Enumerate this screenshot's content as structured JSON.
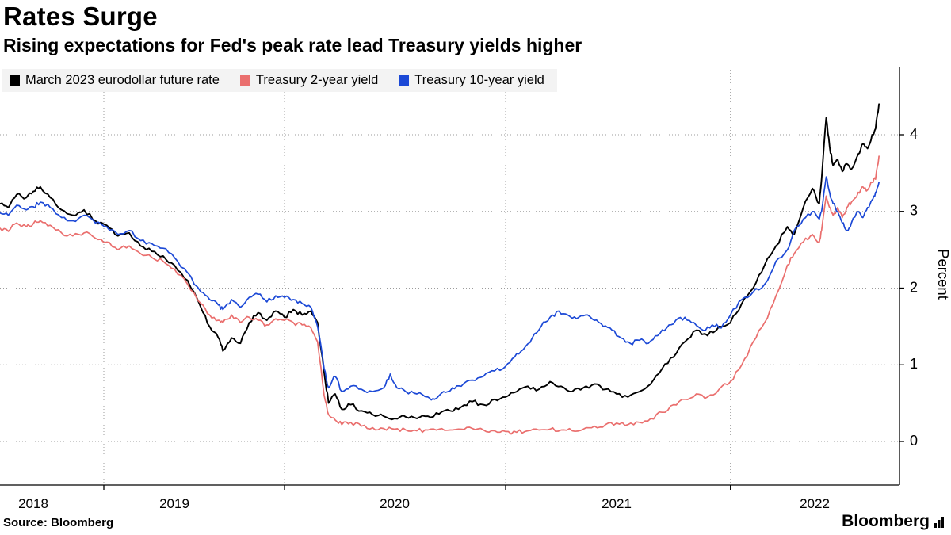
{
  "header": {
    "title": "Rates Surge",
    "subtitle": "Rising expectations for Fed's peak rate lead Treasury yields higher"
  },
  "footer": {
    "source": "Source:  Bloomberg",
    "brand": "Bloomberg"
  },
  "chart_data": {
    "type": "line",
    "title": "Rates Surge",
    "subtitle": "Rising expectations for Fed's peak rate lead Treasury yields higher",
    "ylabel": "Percent",
    "ylabel_side": "right",
    "x_tick_labels": [
      "2018",
      "2019",
      "2020",
      "2021",
      "2022"
    ],
    "y_ticks": [
      0,
      1,
      2,
      3,
      4
    ],
    "xlim": [
      2018.26,
      2022.66
    ],
    "ylim": [
      -0.55,
      4.9
    ],
    "grid": "dotted",
    "legend_position": "top-left",
    "series": [
      {
        "name": "March 2023 eurodollar future rate",
        "color": "#000000",
        "points": [
          [
            2018.26,
            3.1
          ],
          [
            2018.32,
            3.05
          ],
          [
            2018.38,
            3.22
          ],
          [
            2018.45,
            3.18
          ],
          [
            2018.5,
            3.26
          ],
          [
            2018.55,
            3.32
          ],
          [
            2018.62,
            3.18
          ],
          [
            2018.7,
            3.02
          ],
          [
            2018.78,
            2.95
          ],
          [
            2018.86,
            3.02
          ],
          [
            2018.94,
            2.88
          ],
          [
            2019.02,
            2.82
          ],
          [
            2019.1,
            2.68
          ],
          [
            2019.18,
            2.72
          ],
          [
            2019.26,
            2.55
          ],
          [
            2019.34,
            2.48
          ],
          [
            2019.42,
            2.42
          ],
          [
            2019.5,
            2.3
          ],
          [
            2019.56,
            2.1
          ],
          [
            2019.62,
            1.75
          ],
          [
            2019.66,
            1.5
          ],
          [
            2019.7,
            1.35
          ],
          [
            2019.72,
            1.18
          ],
          [
            2019.76,
            1.35
          ],
          [
            2019.8,
            1.28
          ],
          [
            2019.84,
            1.55
          ],
          [
            2019.88,
            1.68
          ],
          [
            2019.92,
            1.58
          ],
          [
            2019.96,
            1.7
          ],
          [
            2020.0,
            1.62
          ],
          [
            2020.04,
            1.72
          ],
          [
            2020.08,
            1.65
          ],
          [
            2020.12,
            1.7
          ],
          [
            2020.15,
            1.55
          ],
          [
            2020.18,
            0.9
          ],
          [
            2020.2,
            0.5
          ],
          [
            2020.23,
            0.62
          ],
          [
            2020.26,
            0.42
          ],
          [
            2020.3,
            0.48
          ],
          [
            2020.35,
            0.4
          ],
          [
            2020.4,
            0.35
          ],
          [
            2020.45,
            0.33
          ],
          [
            2020.5,
            0.3
          ],
          [
            2020.55,
            0.32
          ],
          [
            2020.6,
            0.3
          ],
          [
            2020.65,
            0.33
          ],
          [
            2020.7,
            0.36
          ],
          [
            2020.75,
            0.4
          ],
          [
            2020.8,
            0.45
          ],
          [
            2020.85,
            0.52
          ],
          [
            2020.9,
            0.48
          ],
          [
            2020.95,
            0.55
          ],
          [
            2021.0,
            0.58
          ],
          [
            2021.05,
            0.65
          ],
          [
            2021.1,
            0.72
          ],
          [
            2021.15,
            0.68
          ],
          [
            2021.2,
            0.78
          ],
          [
            2021.25,
            0.72
          ],
          [
            2021.3,
            0.65
          ],
          [
            2021.35,
            0.7
          ],
          [
            2021.4,
            0.75
          ],
          [
            2021.45,
            0.68
          ],
          [
            2021.5,
            0.62
          ],
          [
            2021.55,
            0.58
          ],
          [
            2021.6,
            0.65
          ],
          [
            2021.65,
            0.75
          ],
          [
            2021.7,
            0.95
          ],
          [
            2021.75,
            1.1
          ],
          [
            2021.8,
            1.3
          ],
          [
            2021.85,
            1.45
          ],
          [
            2021.9,
            1.38
          ],
          [
            2021.95,
            1.5
          ],
          [
            2022.0,
            1.55
          ],
          [
            2022.05,
            1.8
          ],
          [
            2022.1,
            2.0
          ],
          [
            2022.15,
            2.3
          ],
          [
            2022.2,
            2.55
          ],
          [
            2022.25,
            2.8
          ],
          [
            2022.28,
            2.7
          ],
          [
            2022.32,
            3.05
          ],
          [
            2022.36,
            3.3
          ],
          [
            2022.39,
            3.1
          ],
          [
            2022.4,
            3.42
          ],
          [
            2022.42,
            4.22
          ],
          [
            2022.435,
            3.85
          ],
          [
            2022.45,
            3.6
          ],
          [
            2022.47,
            3.68
          ],
          [
            2022.49,
            3.52
          ],
          [
            2022.51,
            3.62
          ],
          [
            2022.53,
            3.55
          ],
          [
            2022.56,
            3.75
          ],
          [
            2022.58,
            3.88
          ],
          [
            2022.6,
            3.82
          ],
          [
            2022.62,
            4.0
          ],
          [
            2022.635,
            4.08
          ],
          [
            2022.65,
            4.4
          ]
        ]
      },
      {
        "name": "Treasury 2-year yield",
        "color": "#ea6f6e",
        "points": [
          [
            2018.26,
            2.78
          ],
          [
            2018.32,
            2.74
          ],
          [
            2018.38,
            2.85
          ],
          [
            2018.45,
            2.8
          ],
          [
            2018.5,
            2.84
          ],
          [
            2018.55,
            2.88
          ],
          [
            2018.62,
            2.82
          ],
          [
            2018.7,
            2.72
          ],
          [
            2018.78,
            2.68
          ],
          [
            2018.86,
            2.72
          ],
          [
            2018.94,
            2.65
          ],
          [
            2019.02,
            2.6
          ],
          [
            2019.1,
            2.5
          ],
          [
            2019.18,
            2.55
          ],
          [
            2019.26,
            2.45
          ],
          [
            2019.34,
            2.4
          ],
          [
            2019.42,
            2.35
          ],
          [
            2019.5,
            2.25
          ],
          [
            2019.56,
            2.05
          ],
          [
            2019.62,
            1.8
          ],
          [
            2019.66,
            1.65
          ],
          [
            2019.7,
            1.58
          ],
          [
            2019.72,
            1.55
          ],
          [
            2019.76,
            1.65
          ],
          [
            2019.8,
            1.55
          ],
          [
            2019.84,
            1.62
          ],
          [
            2019.88,
            1.58
          ],
          [
            2019.92,
            1.52
          ],
          [
            2019.96,
            1.6
          ],
          [
            2020.0,
            1.58
          ],
          [
            2020.04,
            1.55
          ],
          [
            2020.08,
            1.52
          ],
          [
            2020.12,
            1.48
          ],
          [
            2020.15,
            1.3
          ],
          [
            2020.18,
            0.6
          ],
          [
            2020.2,
            0.35
          ],
          [
            2020.23,
            0.28
          ],
          [
            2020.26,
            0.22
          ],
          [
            2020.3,
            0.25
          ],
          [
            2020.35,
            0.2
          ],
          [
            2020.4,
            0.18
          ],
          [
            2020.45,
            0.17
          ],
          [
            2020.5,
            0.16
          ],
          [
            2020.55,
            0.15
          ],
          [
            2020.6,
            0.14
          ],
          [
            2020.65,
            0.15
          ],
          [
            2020.7,
            0.16
          ],
          [
            2020.75,
            0.15
          ],
          [
            2020.8,
            0.16
          ],
          [
            2020.85,
            0.17
          ],
          [
            2020.9,
            0.15
          ],
          [
            2020.95,
            0.14
          ],
          [
            2021.0,
            0.13
          ],
          [
            2021.05,
            0.12
          ],
          [
            2021.1,
            0.14
          ],
          [
            2021.15,
            0.15
          ],
          [
            2021.2,
            0.16
          ],
          [
            2021.25,
            0.15
          ],
          [
            2021.3,
            0.14
          ],
          [
            2021.35,
            0.16
          ],
          [
            2021.4,
            0.2
          ],
          [
            2021.45,
            0.22
          ],
          [
            2021.5,
            0.24
          ],
          [
            2021.55,
            0.22
          ],
          [
            2021.6,
            0.25
          ],
          [
            2021.65,
            0.3
          ],
          [
            2021.7,
            0.38
          ],
          [
            2021.75,
            0.48
          ],
          [
            2021.8,
            0.55
          ],
          [
            2021.85,
            0.62
          ],
          [
            2021.9,
            0.58
          ],
          [
            2021.95,
            0.68
          ],
          [
            2022.0,
            0.78
          ],
          [
            2022.05,
            1.0
          ],
          [
            2022.1,
            1.3
          ],
          [
            2022.15,
            1.55
          ],
          [
            2022.2,
            1.9
          ],
          [
            2022.25,
            2.3
          ],
          [
            2022.28,
            2.45
          ],
          [
            2022.32,
            2.6
          ],
          [
            2022.36,
            2.7
          ],
          [
            2022.39,
            2.6
          ],
          [
            2022.4,
            2.75
          ],
          [
            2022.42,
            3.2
          ],
          [
            2022.435,
            3.05
          ],
          [
            2022.45,
            2.95
          ],
          [
            2022.47,
            3.05
          ],
          [
            2022.49,
            2.92
          ],
          [
            2022.51,
            3.05
          ],
          [
            2022.53,
            3.12
          ],
          [
            2022.56,
            3.25
          ],
          [
            2022.58,
            3.32
          ],
          [
            2022.6,
            3.28
          ],
          [
            2022.62,
            3.38
          ],
          [
            2022.635,
            3.42
          ],
          [
            2022.65,
            3.72
          ]
        ]
      },
      {
        "name": "Treasury 10-year yield",
        "color": "#1c49d6",
        "points": [
          [
            2018.26,
            2.98
          ],
          [
            2018.32,
            2.95
          ],
          [
            2018.38,
            3.08
          ],
          [
            2018.45,
            3.02
          ],
          [
            2018.5,
            3.06
          ],
          [
            2018.55,
            3.12
          ],
          [
            2018.62,
            3.05
          ],
          [
            2018.7,
            2.92
          ],
          [
            2018.78,
            2.88
          ],
          [
            2018.86,
            2.95
          ],
          [
            2018.94,
            2.85
          ],
          [
            2019.02,
            2.8
          ],
          [
            2019.1,
            2.7
          ],
          [
            2019.18,
            2.75
          ],
          [
            2019.26,
            2.62
          ],
          [
            2019.34,
            2.58
          ],
          [
            2019.42,
            2.52
          ],
          [
            2019.5,
            2.4
          ],
          [
            2019.56,
            2.2
          ],
          [
            2019.62,
            1.95
          ],
          [
            2019.66,
            1.85
          ],
          [
            2019.7,
            1.78
          ],
          [
            2019.72,
            1.72
          ],
          [
            2019.76,
            1.85
          ],
          [
            2019.8,
            1.75
          ],
          [
            2019.84,
            1.88
          ],
          [
            2019.88,
            1.92
          ],
          [
            2019.92,
            1.82
          ],
          [
            2019.96,
            1.9
          ],
          [
            2020.0,
            1.88
          ],
          [
            2020.04,
            1.85
          ],
          [
            2020.08,
            1.8
          ],
          [
            2020.12,
            1.75
          ],
          [
            2020.15,
            1.5
          ],
          [
            2020.18,
            0.95
          ],
          [
            2020.2,
            0.7
          ],
          [
            2020.23,
            0.85
          ],
          [
            2020.26,
            0.65
          ],
          [
            2020.3,
            0.72
          ],
          [
            2020.35,
            0.68
          ],
          [
            2020.4,
            0.65
          ],
          [
            2020.45,
            0.7
          ],
          [
            2020.48,
            0.88
          ],
          [
            2020.51,
            0.7
          ],
          [
            2020.55,
            0.65
          ],
          [
            2020.6,
            0.62
          ],
          [
            2020.65,
            0.58
          ],
          [
            2020.68,
            0.55
          ],
          [
            2020.72,
            0.65
          ],
          [
            2020.76,
            0.7
          ],
          [
            2020.8,
            0.72
          ],
          [
            2020.85,
            0.8
          ],
          [
            2020.9,
            0.85
          ],
          [
            2020.95,
            0.92
          ],
          [
            2021.0,
            0.98
          ],
          [
            2021.04,
            1.1
          ],
          [
            2021.08,
            1.2
          ],
          [
            2021.12,
            1.35
          ],
          [
            2021.16,
            1.5
          ],
          [
            2021.2,
            1.62
          ],
          [
            2021.24,
            1.7
          ],
          [
            2021.28,
            1.65
          ],
          [
            2021.32,
            1.6
          ],
          [
            2021.36,
            1.65
          ],
          [
            2021.4,
            1.58
          ],
          [
            2021.44,
            1.5
          ],
          [
            2021.48,
            1.45
          ],
          [
            2021.52,
            1.35
          ],
          [
            2021.56,
            1.28
          ],
          [
            2021.6,
            1.32
          ],
          [
            2021.64,
            1.28
          ],
          [
            2021.68,
            1.38
          ],
          [
            2021.72,
            1.48
          ],
          [
            2021.76,
            1.58
          ],
          [
            2021.8,
            1.62
          ],
          [
            2021.84,
            1.55
          ],
          [
            2021.88,
            1.45
          ],
          [
            2021.92,
            1.52
          ],
          [
            2021.96,
            1.48
          ],
          [
            2022.0,
            1.65
          ],
          [
            2022.05,
            1.85
          ],
          [
            2022.1,
            1.95
          ],
          [
            2022.15,
            2.05
          ],
          [
            2022.2,
            2.35
          ],
          [
            2022.25,
            2.5
          ],
          [
            2022.28,
            2.75
          ],
          [
            2022.32,
            2.9
          ],
          [
            2022.36,
            3.0
          ],
          [
            2022.39,
            2.9
          ],
          [
            2022.4,
            3.0
          ],
          [
            2022.42,
            3.45
          ],
          [
            2022.435,
            3.25
          ],
          [
            2022.45,
            3.1
          ],
          [
            2022.47,
            3.0
          ],
          [
            2022.49,
            2.85
          ],
          [
            2022.51,
            2.75
          ],
          [
            2022.53,
            2.85
          ],
          [
            2022.56,
            3.0
          ],
          [
            2022.58,
            2.92
          ],
          [
            2022.6,
            3.05
          ],
          [
            2022.62,
            3.15
          ],
          [
            2022.635,
            3.25
          ],
          [
            2022.65,
            3.38
          ]
        ]
      }
    ]
  }
}
